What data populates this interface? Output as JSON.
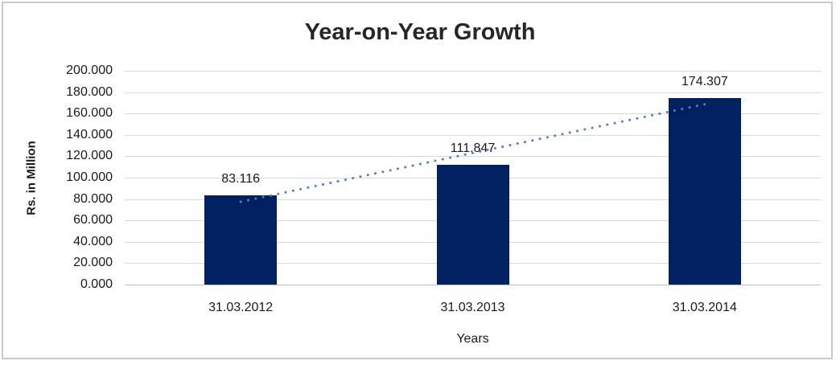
{
  "frame": {
    "border_color": "#c9c9c9",
    "background_color": "#ffffff"
  },
  "chart_data": {
    "type": "bar",
    "title": "Year-on-Year Growth",
    "xlabel": "Years",
    "ylabel": "Rs. in Million",
    "categories": [
      "31.03.2012",
      "31.03.2013",
      "31.03.2014"
    ],
    "values": [
      83.116,
      111.847,
      174.307
    ],
    "value_labels": [
      "83.116",
      "111.847",
      "174.307"
    ],
    "ylim": [
      0,
      200
    ],
    "ytick_step": 20,
    "ytick_labels": [
      "0.000",
      "20.000",
      "40.000",
      "60.000",
      "80.000",
      "100.000",
      "120.000",
      "140.000",
      "160.000",
      "180.000",
      "200.000"
    ],
    "grid": true,
    "legend": "none",
    "bar_color": "#002060",
    "gridline_color": "#d9d9d9",
    "axis_line_color": "#c0c0c0",
    "text_color": "#1a1a1a",
    "title_color": "#262626",
    "trendline": {
      "type": "linear",
      "style": "dotted",
      "color": "#4e81bd"
    }
  }
}
